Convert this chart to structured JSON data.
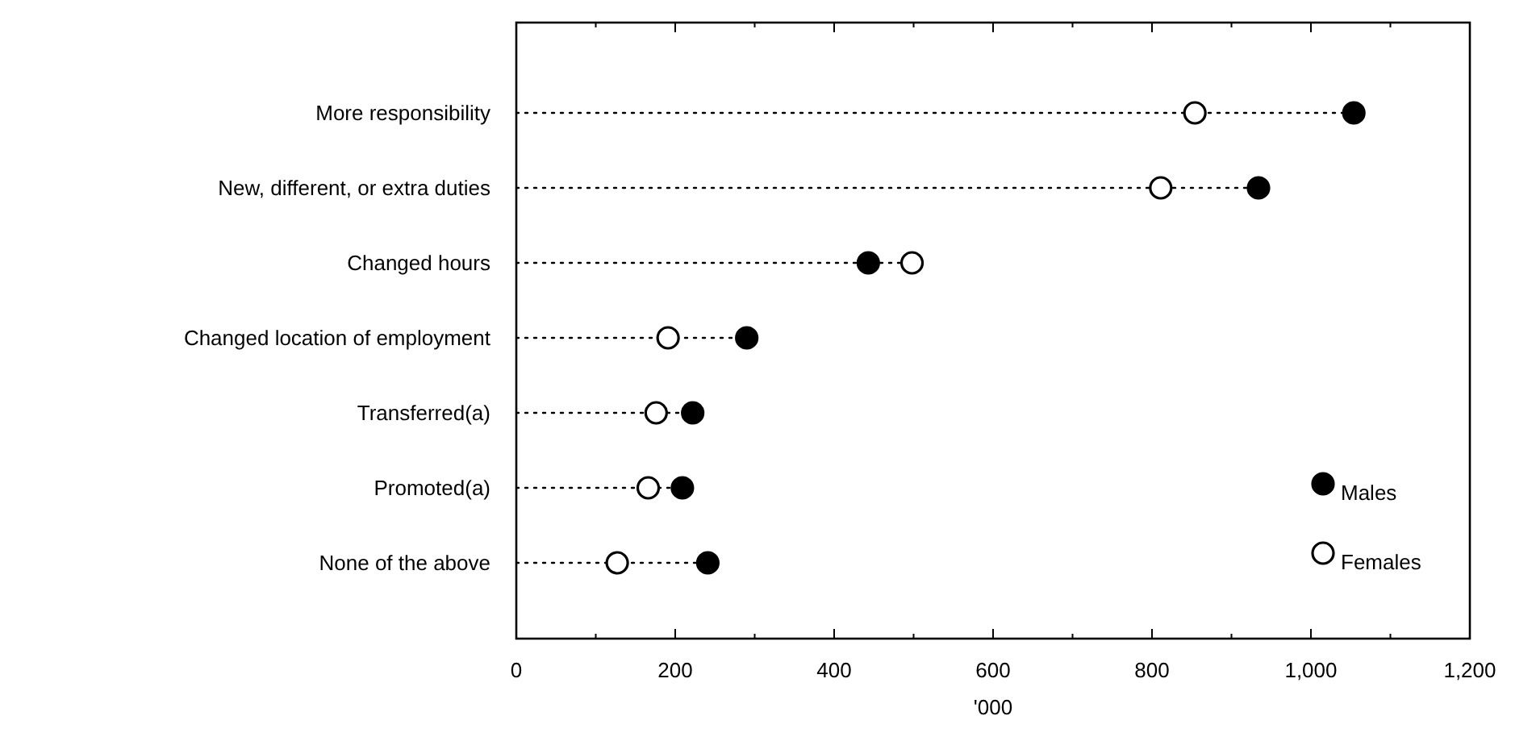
{
  "chart_data": {
    "type": "lollipop",
    "orientation": "horizontal",
    "categories": [
      "More responsibility",
      "New, different, or extra duties",
      "Changed hours",
      "Changed location of employment",
      "Transferred(a)",
      "Promoted(a)",
      "None of the above"
    ],
    "series": [
      {
        "name": "Males",
        "color": "#000000",
        "values": [
          1054,
          934,
          443,
          290,
          222,
          209,
          241
        ]
      },
      {
        "name": "Females",
        "color": "#ffffff",
        "values": [
          854,
          811,
          498,
          191,
          176,
          166,
          127
        ]
      }
    ],
    "xlabel": "'000",
    "xlim": [
      0,
      1200
    ],
    "xticks": [
      0,
      200,
      400,
      {
        "value": 600,
        "label": "600"
      },
      800,
      {
        "value": 1000,
        "label": "1,000"
      },
      {
        "value": 1200,
        "label": "1,200"
      }
    ],
    "marker": "circle",
    "line_style": "dotted",
    "legend": "bottom right",
    "grid": false
  }
}
